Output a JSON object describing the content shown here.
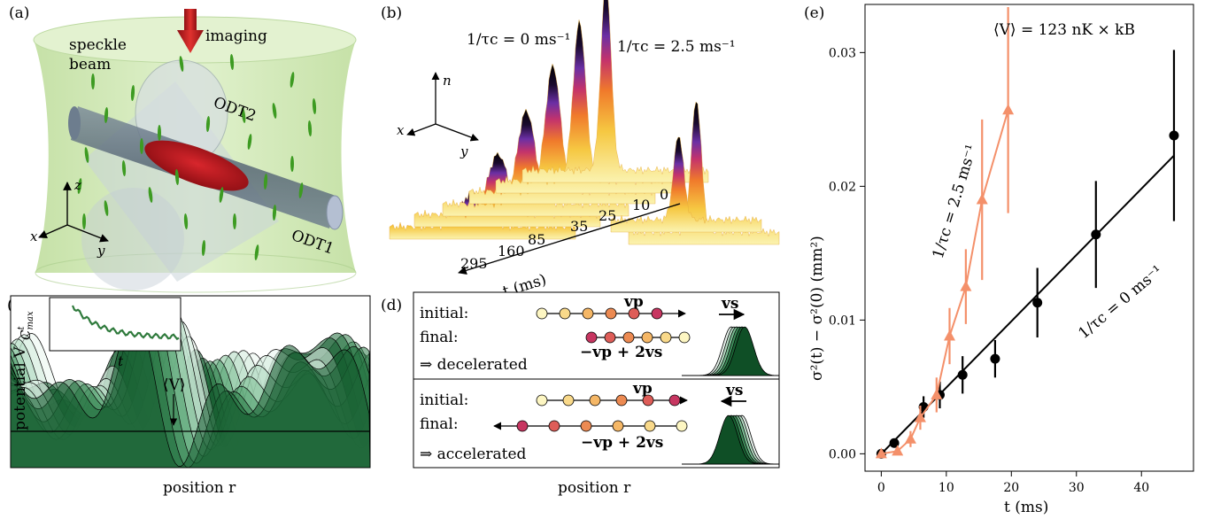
{
  "panels": {
    "a": {
      "label": "(a)",
      "speckle_line1": "speckle",
      "speckle_line2": "beam",
      "imaging": "imaging",
      "odt1": "ODT1",
      "odt2": "ODT2",
      "axis_x": "x",
      "axis_y": "y",
      "axis_z": "z",
      "colors": {
        "speckle": "#c8e3a8",
        "odt": "#5a6b7d",
        "cloud": "#b0121b",
        "speckle_grains": "#3d9b22",
        "arrow": "#c0191f"
      }
    },
    "b": {
      "label": "(b)",
      "rate0": "1/τc = 0 ms⁻¹",
      "rate25": "1/τc = 2.5 ms⁻¹",
      "axis_n": "n",
      "axis_x": "x",
      "axis_y": "y",
      "time_axis": "t (ms)",
      "times": [
        "0",
        "10",
        "25",
        "35",
        "85",
        "160",
        "295"
      ]
    },
    "c": {
      "label": "(c)",
      "ylabel": "potential V",
      "xlabel": "position r",
      "mean_label": "⟨V⟩",
      "inset_ylabel": "C",
      "inset_ylabel_sup": "t",
      "inset_ylabel_sub": "max",
      "inset_xlabel": "t"
    },
    "d": {
      "label": "(d)",
      "xlabel": "position r",
      "top": {
        "initial": "initial:",
        "final": "final:",
        "vp": "vp",
        "vs": "vs",
        "result": "⇒ decelerated",
        "expr": "−vp + 2vs"
      },
      "bottom": {
        "initial": "initial:",
        "final": "final:",
        "vp": "vp",
        "vs": "vs",
        "result": "⇒ accelerated",
        "expr": "−vp + 2vs"
      }
    },
    "e": {
      "label": "(e)",
      "annotation": "⟨V⟩ = 123 nK × kB",
      "ylabel": "σ²(t) − σ²(0)  (mm²)",
      "xlabel": "t (ms)",
      "series_orange_label": "1/τc = 2.5 ms⁻¹",
      "series_black_label": "1/τc = 0 ms⁻¹"
    }
  },
  "chart_data": {
    "type": "scatter",
    "title": "",
    "xlabel": "t (ms)",
    "ylabel": "σ²(t) − σ²(0) (mm²)",
    "xlim": [
      -2.5,
      48
    ],
    "ylim": [
      -0.0013,
      0.0336
    ],
    "xticks": [
      0,
      10,
      20,
      30,
      40
    ],
    "yticks": [
      0.0,
      0.01,
      0.02,
      0.03
    ],
    "ytick_labels": [
      "0.00",
      "0.01",
      "0.02",
      "0.03"
    ],
    "colors": {
      "black": "#000000",
      "orange": "#f4906a"
    },
    "series": [
      {
        "name": "1/τc = 0 ms⁻¹",
        "marker": "circle",
        "x": [
          0,
          2,
          6.5,
          9,
          12.5,
          17.5,
          24,
          33,
          45
        ],
        "y": [
          0.0,
          0.0008,
          0.0035,
          0.0044,
          0.0059,
          0.0071,
          0.0113,
          0.0164,
          0.0238
        ],
        "err": [
          0.0002,
          0.0003,
          0.0008,
          0.001,
          0.0014,
          0.0014,
          0.0026,
          0.004,
          0.0064
        ],
        "fit": [
          [
            0,
            0
          ],
          [
            45,
            0.0223
          ]
        ]
      },
      {
        "name": "1/τc = 2.5 ms⁻¹",
        "marker": "triangle",
        "x": [
          0,
          2.5,
          4.5,
          6,
          8.5,
          10.5,
          13,
          15.5,
          19.5
        ],
        "y": [
          0.0,
          0.0002,
          0.0011,
          0.0027,
          0.0044,
          0.0088,
          0.0125,
          0.019,
          0.0257
        ],
        "err": [
          0.0003,
          0.0003,
          0.0006,
          0.0009,
          0.0013,
          0.0021,
          0.0028,
          0.006,
          0.0077
        ],
        "fit": [
          [
            0,
            0
          ],
          [
            2.5,
            0.0002
          ],
          [
            4.5,
            0.0011
          ],
          [
            6,
            0.0027
          ],
          [
            8.5,
            0.0044
          ],
          [
            10.5,
            0.0088
          ],
          [
            13,
            0.0125
          ],
          [
            15.5,
            0.019
          ],
          [
            19.5,
            0.0257
          ]
        ]
      }
    ],
    "legend": "none",
    "grid": false
  }
}
